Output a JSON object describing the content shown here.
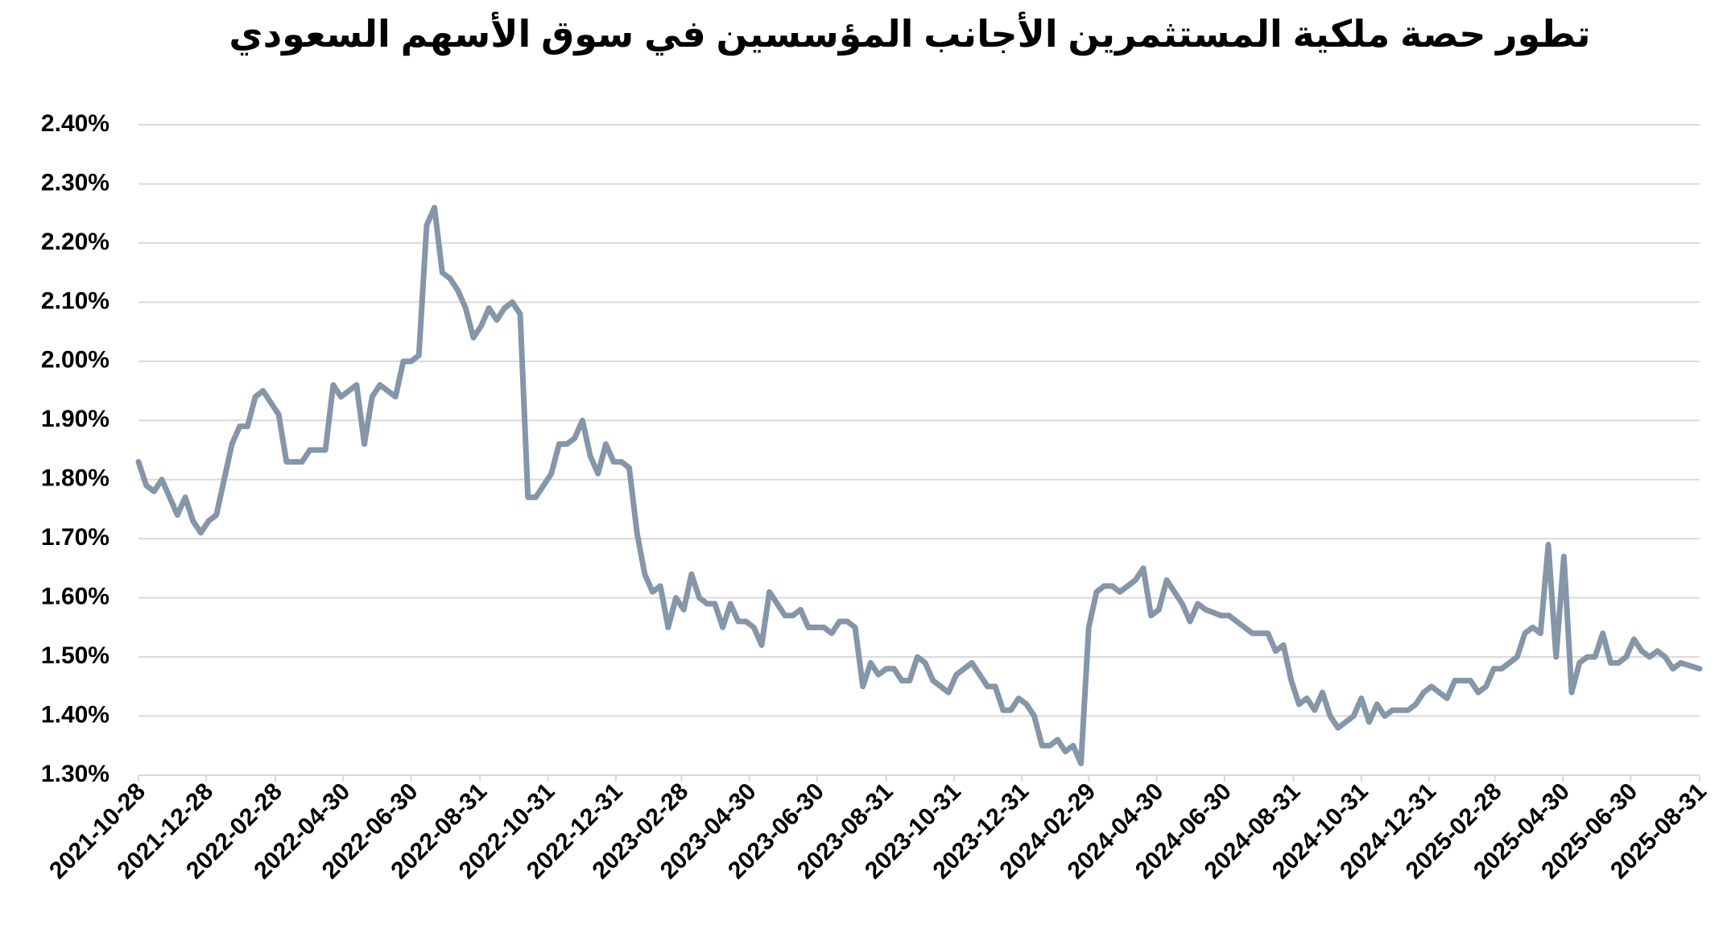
{
  "chart_data": {
    "type": "line",
    "title": "تطور حصة ملكية المستثمرين الأجانب المؤسسين في سوق الأسهم السعودي",
    "x": [
      "2021-10-28",
      "2021-11-04",
      "2021-11-11",
      "2021-11-18",
      "2021-11-25",
      "2021-12-02",
      "2021-12-09",
      "2021-12-16",
      "2021-12-23",
      "2021-12-30",
      "2022-01-06",
      "2022-01-13",
      "2022-01-20",
      "2022-01-27",
      "2022-02-03",
      "2022-02-10",
      "2022-02-17",
      "2022-02-24",
      "2022-03-03",
      "2022-03-10",
      "2022-03-17",
      "2022-03-24",
      "2022-03-31",
      "2022-04-07",
      "2022-04-14",
      "2022-04-21",
      "2022-04-28",
      "2022-05-05",
      "2022-05-12",
      "2022-05-19",
      "2022-05-26",
      "2022-06-02",
      "2022-06-09",
      "2022-06-16",
      "2022-06-23",
      "2022-06-30",
      "2022-07-07",
      "2022-07-14",
      "2022-07-21",
      "2022-07-28",
      "2022-08-04",
      "2022-08-11",
      "2022-08-18",
      "2022-08-25",
      "2022-09-01",
      "2022-09-08",
      "2022-09-15",
      "2022-09-22",
      "2022-09-29",
      "2022-10-06",
      "2022-10-13",
      "2022-10-20",
      "2022-10-27",
      "2022-11-03",
      "2022-11-10",
      "2022-11-17",
      "2022-11-24",
      "2022-12-01",
      "2022-12-08",
      "2022-12-15",
      "2022-12-22",
      "2022-12-29",
      "2023-01-05",
      "2023-01-12",
      "2023-01-19",
      "2023-01-26",
      "2023-02-02",
      "2023-02-09",
      "2023-02-16",
      "2023-02-23",
      "2023-03-02",
      "2023-03-09",
      "2023-03-16",
      "2023-03-23",
      "2023-03-30",
      "2023-04-06",
      "2023-04-13",
      "2023-04-20",
      "2023-04-27",
      "2023-05-04",
      "2023-05-11",
      "2023-05-18",
      "2023-05-25",
      "2023-06-01",
      "2023-06-08",
      "2023-06-15",
      "2023-06-22",
      "2023-06-29",
      "2023-07-06",
      "2023-07-13",
      "2023-07-20",
      "2023-07-27",
      "2023-08-03",
      "2023-08-10",
      "2023-08-17",
      "2023-08-24",
      "2023-08-31",
      "2023-09-07",
      "2023-09-14",
      "2023-09-21",
      "2023-09-28",
      "2023-10-05",
      "2023-10-12",
      "2023-10-19",
      "2023-10-26",
      "2023-11-02",
      "2023-11-09",
      "2023-11-16",
      "2023-11-23",
      "2023-11-30",
      "2023-12-07",
      "2023-12-14",
      "2023-12-21",
      "2023-12-28",
      "2024-01-04",
      "2024-01-11",
      "2024-01-18",
      "2024-01-25",
      "2024-02-01",
      "2024-02-08",
      "2024-02-15",
      "2024-02-22",
      "2024-02-29",
      "2024-03-07",
      "2024-03-14",
      "2024-03-21",
      "2024-03-28",
      "2024-04-04",
      "2024-04-11",
      "2024-04-18",
      "2024-04-25",
      "2024-05-02",
      "2024-05-09",
      "2024-05-16",
      "2024-05-23",
      "2024-05-30",
      "2024-06-06",
      "2024-06-13",
      "2024-06-20",
      "2024-06-27",
      "2024-07-04",
      "2024-07-11",
      "2024-07-18",
      "2024-07-25",
      "2024-08-01",
      "2024-08-08",
      "2024-08-15",
      "2024-08-22",
      "2024-08-29",
      "2024-09-05",
      "2024-09-12",
      "2024-09-19",
      "2024-09-26",
      "2024-10-03",
      "2024-10-10",
      "2024-10-17",
      "2024-10-24",
      "2024-10-31",
      "2024-11-07",
      "2024-11-14",
      "2024-11-21",
      "2024-11-28",
      "2024-12-05",
      "2024-12-12",
      "2024-12-19",
      "2024-12-26",
      "2025-01-02",
      "2025-01-09",
      "2025-01-16",
      "2025-01-23",
      "2025-01-30",
      "2025-02-06",
      "2025-02-13",
      "2025-02-20",
      "2025-02-27",
      "2025-03-06",
      "2025-03-13",
      "2025-03-20",
      "2025-03-27",
      "2025-04-03",
      "2025-04-10",
      "2025-04-17",
      "2025-04-24",
      "2025-05-01",
      "2025-05-08",
      "2025-05-15",
      "2025-05-22",
      "2025-05-29",
      "2025-06-05",
      "2025-06-12",
      "2025-06-19",
      "2025-06-26",
      "2025-07-03",
      "2025-07-10",
      "2025-07-17",
      "2025-07-24",
      "2025-07-31",
      "2025-08-07",
      "2025-08-14",
      "2025-08-31"
    ],
    "values": [
      1.83,
      1.79,
      1.78,
      1.8,
      1.77,
      1.74,
      1.77,
      1.73,
      1.71,
      1.73,
      1.74,
      1.8,
      1.86,
      1.89,
      1.89,
      1.94,
      1.95,
      1.93,
      1.91,
      1.83,
      1.83,
      1.83,
      1.85,
      1.85,
      1.85,
      1.96,
      1.94,
      1.95,
      1.96,
      1.86,
      1.94,
      1.96,
      1.95,
      1.94,
      2.0,
      2.0,
      2.01,
      2.23,
      2.26,
      2.15,
      2.14,
      2.12,
      2.09,
      2.04,
      2.06,
      2.09,
      2.07,
      2.09,
      2.1,
      2.08,
      1.77,
      1.77,
      1.79,
      1.81,
      1.86,
      1.86,
      1.87,
      1.9,
      1.84,
      1.81,
      1.86,
      1.83,
      1.83,
      1.82,
      1.71,
      1.64,
      1.61,
      1.62,
      1.55,
      1.6,
      1.58,
      1.64,
      1.6,
      1.59,
      1.59,
      1.55,
      1.59,
      1.56,
      1.56,
      1.55,
      1.52,
      1.61,
      1.59,
      1.57,
      1.57,
      1.58,
      1.55,
      1.55,
      1.55,
      1.54,
      1.56,
      1.56,
      1.55,
      1.45,
      1.49,
      1.47,
      1.48,
      1.48,
      1.46,
      1.46,
      1.5,
      1.49,
      1.46,
      1.45,
      1.44,
      1.47,
      1.48,
      1.49,
      1.47,
      1.45,
      1.45,
      1.41,
      1.41,
      1.43,
      1.42,
      1.4,
      1.35,
      1.35,
      1.36,
      1.34,
      1.35,
      1.32,
      1.55,
      1.61,
      1.62,
      1.62,
      1.61,
      1.62,
      1.63,
      1.65,
      1.57,
      1.58,
      1.63,
      1.61,
      1.59,
      1.56,
      1.59,
      1.58,
      1.575,
      1.57,
      1.57,
      1.56,
      1.55,
      1.54,
      1.54,
      1.54,
      1.51,
      1.52,
      1.46,
      1.42,
      1.43,
      1.41,
      1.44,
      1.4,
      1.38,
      1.39,
      1.4,
      1.43,
      1.39,
      1.42,
      1.4,
      1.41,
      1.41,
      1.41,
      1.42,
      1.44,
      1.45,
      1.44,
      1.43,
      1.46,
      1.46,
      1.46,
      1.44,
      1.45,
      1.48,
      1.48,
      1.49,
      1.5,
      1.54,
      1.55,
      1.54,
      1.69,
      1.5,
      1.67,
      1.44,
      1.49,
      1.5,
      1.5,
      1.54,
      1.49,
      1.49,
      1.5,
      1.53,
      1.51,
      1.5,
      1.51,
      1.5,
      1.48,
      1.49,
      1.48
    ],
    "color": "#8496a8",
    "xlim": [
      "2021-10-28",
      "2025-08-31"
    ],
    "xticks": [
      "2021-10-28",
      "2021-12-28",
      "2022-02-28",
      "2022-04-30",
      "2022-06-30",
      "2022-08-31",
      "2022-10-31",
      "2022-12-31",
      "2023-02-28",
      "2023-04-30",
      "2023-06-30",
      "2023-08-31",
      "2023-10-31",
      "2023-12-31",
      "2024-02-29",
      "2024-04-30",
      "2024-06-30",
      "2024-08-31",
      "2024-10-31",
      "2024-12-31",
      "2025-02-28",
      "2025-04-30",
      "2025-06-30",
      "2025-08-31"
    ],
    "ylim": [
      1.3,
      2.4
    ],
    "yticks": [
      {
        "value": 1.3,
        "label": "1.30%"
      },
      {
        "value": 1.4,
        "label": "1.40%"
      },
      {
        "value": 1.5,
        "label": "1.50%"
      },
      {
        "value": 1.6,
        "label": "1.60%"
      },
      {
        "value": 1.7,
        "label": "1.70%"
      },
      {
        "value": 1.8,
        "label": "1.80%"
      },
      {
        "value": 1.9,
        "label": "1.90%"
      },
      {
        "value": 2.0,
        "label": "2.00%"
      },
      {
        "value": 2.1,
        "label": "2.10%"
      },
      {
        "value": 2.2,
        "label": "2.20%"
      },
      {
        "value": 2.3,
        "label": "2.30%"
      },
      {
        "value": 2.4,
        "label": "2.40%"
      }
    ],
    "grid": true
  }
}
